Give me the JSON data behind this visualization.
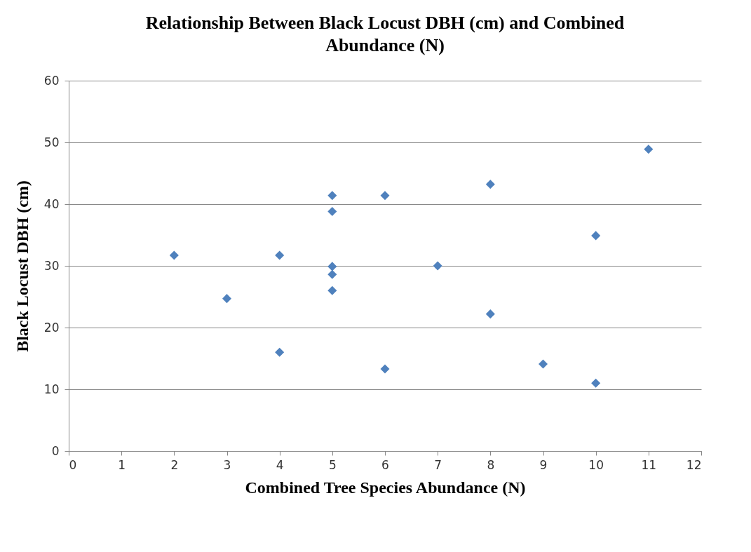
{
  "chart_data": {
    "type": "scatter",
    "title": "Relationship Between Black Locust DBH (cm) and Combined Abundance (N)",
    "xlabel": "Combined Tree Species Abundance (N)",
    "ylabel": "Black Locust DBH (cm)",
    "x": [
      2,
      3,
      4,
      4,
      5,
      5,
      5,
      5,
      5,
      6,
      6,
      7,
      8,
      8,
      9,
      10,
      10,
      11
    ],
    "series": [
      {
        "color": "#4f81bd",
        "values": [
          31.7,
          24.7,
          31.7,
          16.0,
          41.4,
          38.8,
          29.9,
          28.6,
          26.0,
          41.4,
          13.3,
          30.0,
          43.2,
          22.2,
          14.1,
          34.9,
          11.0,
          48.9
        ]
      }
    ],
    "xlim": [
      0,
      12
    ],
    "xticks": [
      0,
      1,
      2,
      3,
      4,
      5,
      6,
      7,
      8,
      9,
      10,
      11,
      12
    ],
    "ylim": [
      0,
      60
    ],
    "yticks": [
      0,
      10,
      20,
      30,
      40,
      50,
      60
    ],
    "grid": "y",
    "marker": "diamond"
  }
}
